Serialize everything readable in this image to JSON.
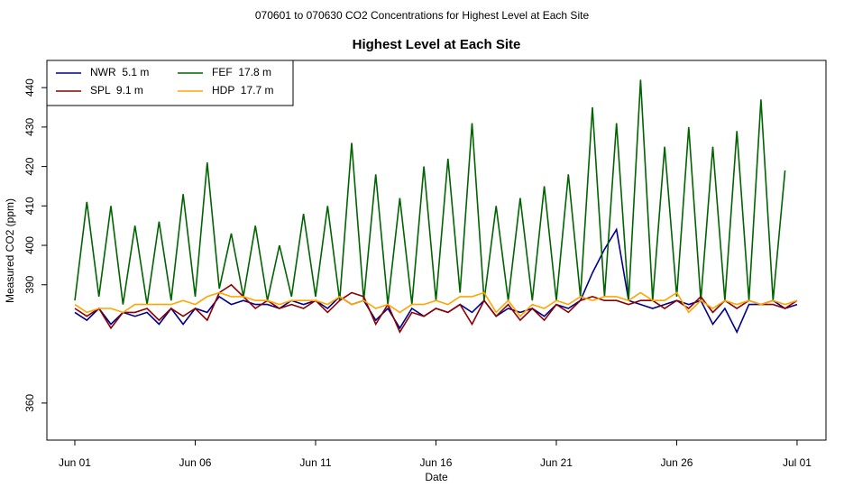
{
  "chart_data": {
    "type": "line",
    "title": "070601  to  070630 CO2 Concentrations for Highest Level at Each Site",
    "subtitle": "Highest Level at Each Site",
    "x_label": "Date",
    "y_label": "Measured CO2 (ppm)",
    "x": [
      0,
      0.5,
      1,
      1.5,
      2,
      2.5,
      3,
      3.5,
      4,
      4.5,
      5,
      5.5,
      6,
      6.5,
      7,
      7.5,
      8,
      8.5,
      9,
      9.5,
      10,
      10.5,
      11,
      11.5,
      12,
      12.5,
      13,
      13.5,
      14,
      14.5,
      15,
      15.5,
      16,
      16.5,
      17,
      17.5,
      18,
      18.5,
      19,
      19.5,
      20,
      20.5,
      21,
      21.5,
      22,
      22.5,
      23,
      23.5,
      24,
      24.5,
      25,
      25.5,
      26,
      26.5,
      27,
      27.5,
      28,
      28.5,
      29,
      29.5,
      30
    ],
    "xlim": [
      -1.16,
      31.2
    ],
    "xticks": [
      {
        "value": 0,
        "label": "Jun 01"
      },
      {
        "value": 5,
        "label": "Jun 06"
      },
      {
        "value": 10,
        "label": "Jun 11"
      },
      {
        "value": 15,
        "label": "Jun 16"
      },
      {
        "value": 20,
        "label": "Jun 21"
      },
      {
        "value": 25,
        "label": "Jun 26"
      },
      {
        "value": 30,
        "label": "Jul 01"
      }
    ],
    "ylim": [
      350.6,
      446.9
    ],
    "yticks": [
      360,
      390,
      400,
      410,
      420,
      430,
      440
    ],
    "legend": "topleft",
    "series": [
      {
        "name": "NWR  5.1 m",
        "color": "#00008b",
        "values": [
          383,
          381,
          384,
          380,
          383,
          382,
          383,
          380,
          384,
          380,
          384,
          383,
          387,
          385,
          386,
          385,
          385,
          384,
          386,
          385,
          386,
          384,
          387,
          385,
          386,
          381,
          384,
          379,
          384,
          382,
          384,
          383,
          385,
          383,
          386,
          382,
          384,
          383,
          384,
          382,
          385,
          384,
          386,
          393,
          399,
          404,
          386,
          385,
          384,
          385,
          386,
          385,
          386,
          380,
          384,
          378,
          385,
          385,
          386,
          384,
          385
        ]
      },
      {
        "name": "FEF  17.8 m",
        "color": "#006400",
        "values": [
          386,
          411,
          387,
          410,
          385,
          405,
          385,
          406,
          386,
          413,
          387,
          421,
          389,
          403,
          387,
          405,
          386,
          400,
          387,
          408,
          387,
          410,
          386,
          426,
          386,
          418,
          385,
          412,
          385,
          420,
          386,
          422,
          388,
          431,
          386,
          410,
          386,
          412,
          386,
          415,
          386,
          418,
          387,
          435,
          387,
          431,
          386,
          442,
          386,
          425,
          387,
          430,
          386,
          425,
          386,
          429,
          386,
          437,
          386,
          419,
          null
        ]
      },
      {
        "name": "SPL  9.1 m",
        "color": "#8b0000",
        "values": [
          384,
          382,
          384,
          379,
          383,
          383,
          384,
          381,
          384,
          382,
          384,
          381,
          388,
          390,
          387,
          384,
          386,
          384,
          385,
          384,
          386,
          383,
          386,
          388,
          387,
          380,
          385,
          378,
          383,
          382,
          384,
          383,
          385,
          380,
          386,
          382,
          385,
          381,
          384,
          381,
          385,
          383,
          386,
          387,
          386,
          386,
          385,
          386,
          386,
          384,
          386,
          384,
          387,
          383,
          386,
          384,
          386,
          385,
          385,
          384,
          386
        ]
      },
      {
        "name": "HDP  17.7 m",
        "color": "#ffa500",
        "values": [
          385,
          383,
          384,
          384,
          383,
          385,
          385,
          385,
          385,
          386,
          385,
          387,
          388,
          387,
          387,
          386,
          386,
          385,
          386,
          386,
          386,
          385,
          387,
          385,
          386,
          384,
          385,
          383,
          385,
          385,
          386,
          385,
          387,
          387,
          388,
          383,
          386,
          382,
          385,
          384,
          386,
          385,
          387,
          386,
          387,
          387,
          386,
          388,
          386,
          386,
          388,
          383,
          386,
          384,
          386,
          385,
          386,
          385,
          386,
          385,
          386
        ]
      }
    ]
  }
}
